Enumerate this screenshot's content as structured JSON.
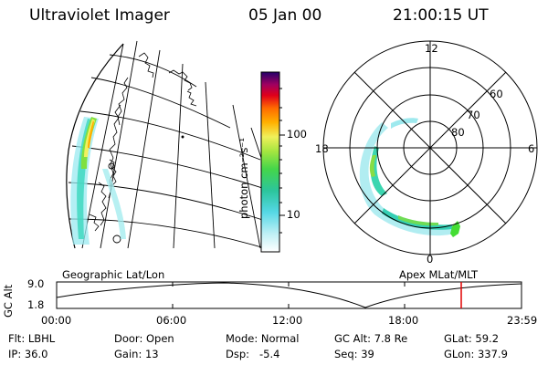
{
  "header": {
    "title": "Ultraviolet Imager",
    "date": "05 Jan 00",
    "time": "21:00:15 UT"
  },
  "left_map": {
    "caption": "Geographic Lat/Lon"
  },
  "right_map": {
    "caption": "Apex MLat/MLT",
    "mlt_labels": [
      "12",
      "18",
      "6",
      "0"
    ],
    "lat_labels": [
      "80",
      "70",
      "60"
    ]
  },
  "colorbar": {
    "unit_label": "photon cm⁻²s⁻¹",
    "ticks": [
      "100",
      "10"
    ]
  },
  "altitude_plot": {
    "ylabel": "GC Alt",
    "y_ticks": [
      "9.0",
      "1.8"
    ],
    "x_ticks": [
      "00:00",
      "06:00",
      "12:00",
      "18:00",
      "23:59"
    ]
  },
  "info": {
    "row1": [
      {
        "label": "Flt:",
        "value": "LBHL"
      },
      {
        "label": "Door:",
        "value": "Open"
      },
      {
        "label": "Mode:",
        "value": "Normal"
      },
      {
        "label": "GC Alt:",
        "value": "7.8 Re"
      },
      {
        "label": "GLat:",
        "value": "59.2"
      }
    ],
    "row2": [
      {
        "label": "IP:",
        "value": "36.0"
      },
      {
        "label": "Gain:",
        "value": "13"
      },
      {
        "label": "Dsp:",
        "value": "-5.4"
      },
      {
        "label": "Seq:",
        "value": "39"
      },
      {
        "label": "GLon:",
        "value": "337.9"
      }
    ]
  },
  "colors": {
    "hot": "#ff8800",
    "green": "#44dd33",
    "cyan": "#33ddcc",
    "marker": "#e00000"
  }
}
